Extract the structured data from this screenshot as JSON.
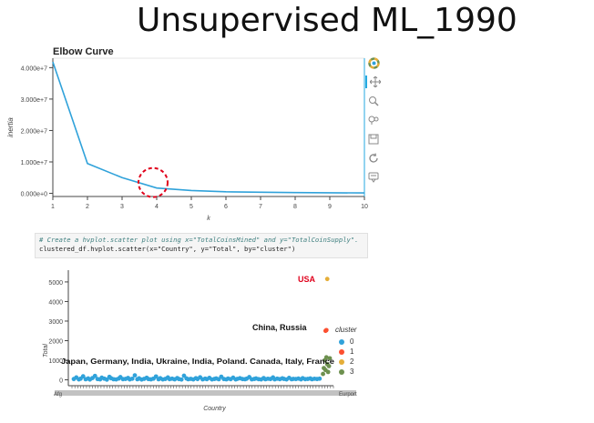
{
  "slide_title": "Unsupervised ML_1990",
  "elbow_title": "Elbow Curve",
  "toolbar": {
    "icons": [
      "bokeh-logo-icon",
      "pan-icon",
      "zoom-icon",
      "wheel-zoom-icon",
      "save-icon",
      "reset-icon",
      "hover-icon"
    ]
  },
  "code": {
    "comment": "# Create a hvplot.scatter plot using x=\"TotalCoinsMined\" and y=\"TotalCoinSupply\".",
    "line": "clustered_df.hvplot.scatter(x=\"Country\", y=\"Total\", by=\"cluster\")"
  },
  "annotations": {
    "usa": "USA",
    "china_russia": "China, Russia",
    "group3": "Japan, Germany, India, Ukraine, India, Poland. Canada, Italy, France"
  },
  "colors": {
    "line": "#30a2da",
    "cluster0": "#30a2da",
    "cluster1": "#fc4f30",
    "cluster2": "#e5ae38",
    "cluster3": "#6d904f",
    "annotation_red": "#e0001b"
  },
  "chart_data": [
    {
      "type": "line",
      "title": "Elbow Curve",
      "xlabel": "k",
      "ylabel": "inertia",
      "x": [
        1,
        2,
        3,
        4,
        5,
        6,
        7,
        8,
        9,
        10
      ],
      "y": [
        41800000,
        9500000,
        5000000,
        1700000,
        900000,
        500000,
        350000,
        250000,
        180000,
        130000
      ],
      "xlim": [
        1,
        10
      ],
      "ylim": [
        -1000000,
        43000000
      ],
      "x_ticks": [
        "1",
        "2",
        "3",
        "4",
        "5",
        "6",
        "7",
        "8",
        "9",
        "10"
      ],
      "y_ticks": [
        "0.000e+0",
        "1.000e+7",
        "2.000e+7",
        "3.000e+7",
        "4.000e+7"
      ],
      "y_tick_values": [
        0,
        10000000,
        20000000,
        30000000,
        40000000
      ],
      "highlight_k": 4
    },
    {
      "type": "scatter",
      "xlabel": "Country",
      "ylabel": "Total",
      "ylim": [
        -300,
        5600
      ],
      "y_ticks": [
        "0",
        "1000",
        "2000",
        "3000",
        "4000",
        "5000"
      ],
      "y_tick_values": [
        0,
        1000,
        2000,
        3000,
        4000,
        5000
      ],
      "legend_title": "cluster",
      "legend": [
        "0",
        "1",
        "2",
        "3"
      ],
      "x_tick_first": "Afg",
      "x_tick_last": "Eurport",
      "series": [
        {
          "name": "0",
          "x": [
            0,
            3,
            6,
            8,
            11,
            14,
            17,
            19,
            22,
            25,
            28,
            31,
            33,
            36,
            39,
            42,
            44,
            47,
            50,
            53,
            55,
            58,
            61,
            64,
            66,
            69,
            72,
            75,
            77,
            80,
            83,
            86,
            88,
            91,
            94,
            97,
            100,
            102,
            105,
            108,
            111,
            113,
            116,
            119,
            122,
            124,
            127,
            130,
            133,
            135,
            138,
            141,
            144,
            146,
            149,
            152,
            155,
            157,
            160,
            163,
            166,
            168,
            171,
            174,
            177,
            180,
            182,
            185,
            188,
            191,
            193,
            196,
            199,
            202,
            204,
            207,
            210,
            213,
            215,
            218,
            221,
            224,
            226,
            229,
            232,
            235,
            237,
            240,
            243,
            246,
            248,
            251,
            254,
            257,
            259,
            262,
            265,
            268,
            270,
            273,
            276,
            279,
            281,
            284,
            287,
            290
          ],
          "y": [
            40,
            120,
            20,
            60,
            180,
            30,
            70,
            15,
            90,
            200,
            40,
            25,
            110,
            60,
            10,
            150,
            80,
            30,
            20,
            65,
            140,
            35,
            45,
            95,
            20,
            55,
            230,
            30,
            75,
            15,
            50,
            105,
            40,
            25,
            60,
            170,
            30,
            80,
            20,
            45,
            120,
            35,
            60,
            25,
            90,
            40,
            15,
            210,
            70,
            30,
            50,
            20,
            85,
            40,
            130,
            25,
            60,
            35,
            100,
            20,
            45,
            70,
            30,
            160,
            40,
            25,
            65,
            35,
            110,
            20,
            50,
            80,
            40,
            30,
            60,
            140,
            25,
            45,
            70,
            35,
            20,
            90,
            30,
            55,
            40,
            120,
            25,
            60,
            35,
            75,
            45,
            20,
            100,
            30,
            50,
            40,
            65,
            25,
            85,
            35,
            45,
            70,
            30,
            55,
            40,
            60
          ]
        },
        {
          "name": "1",
          "x": [
            297,
            298
          ],
          "y": [
            2500,
            2540
          ]
        },
        {
          "name": "2",
          "x": [
            299
          ],
          "y": [
            5150
          ]
        },
        {
          "name": "3",
          "x": [
            294,
            295,
            296,
            297,
            298,
            299,
            300,
            301,
            302
          ],
          "y": [
            300,
            600,
            1000,
            500,
            1150,
            800,
            400,
            700,
            1100
          ]
        }
      ]
    }
  ]
}
